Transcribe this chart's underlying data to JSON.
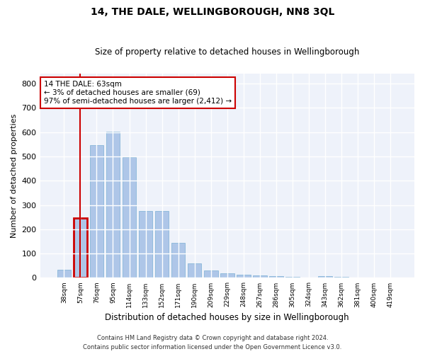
{
  "title": "14, THE DALE, WELLINGBOROUGH, NN8 3QL",
  "subtitle": "Size of property relative to detached houses in Wellingborough",
  "xlabel": "Distribution of detached houses by size in Wellingborough",
  "ylabel": "Number of detached properties",
  "categories": [
    "38sqm",
    "57sqm",
    "76sqm",
    "95sqm",
    "114sqm",
    "133sqm",
    "152sqm",
    "171sqm",
    "190sqm",
    "209sqm",
    "229sqm",
    "248sqm",
    "267sqm",
    "286sqm",
    "305sqm",
    "324sqm",
    "343sqm",
    "362sqm",
    "381sqm",
    "400sqm",
    "419sqm"
  ],
  "values": [
    33,
    247,
    547,
    603,
    497,
    275,
    275,
    143,
    60,
    30,
    18,
    13,
    10,
    8,
    5,
    1,
    7,
    4,
    1,
    1,
    2
  ],
  "bar_color": "#aec6e8",
  "bar_edge_color": "#7bafd4",
  "highlight_bar_index": 1,
  "highlight_bar_edge_color": "#cc0000",
  "annotation_box_text": "14 THE DALE: 63sqm\n← 3% of detached houses are smaller (69)\n97% of semi-detached houses are larger (2,412) →",
  "vline_x": 1,
  "ylim": [
    0,
    840
  ],
  "yticks": [
    0,
    100,
    200,
    300,
    400,
    500,
    600,
    700,
    800
  ],
  "background_color": "#eef2fa",
  "grid_color": "#ffffff",
  "footer_line1": "Contains HM Land Registry data © Crown copyright and database right 2024.",
  "footer_line2": "Contains public sector information licensed under the Open Government Licence v3.0."
}
